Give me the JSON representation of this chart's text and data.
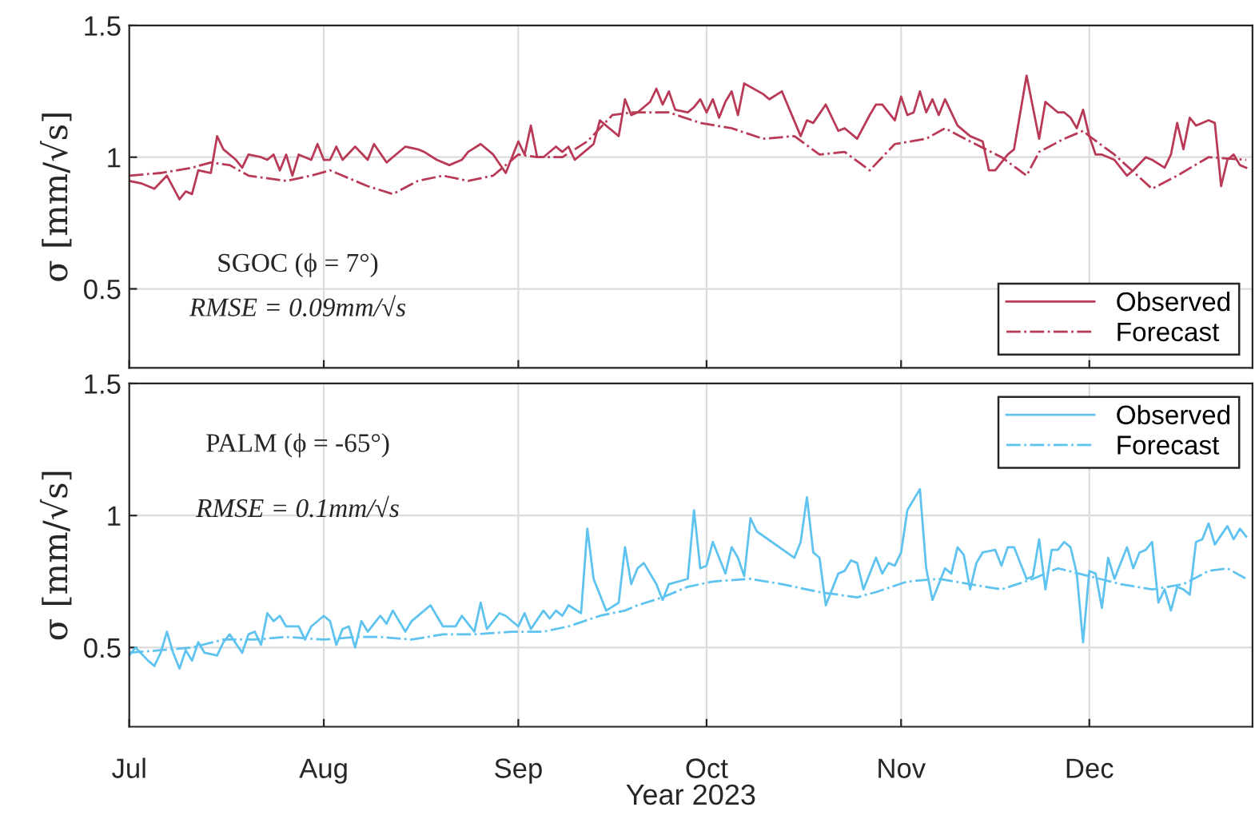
{
  "chart_data": [
    {
      "type": "line",
      "ylabel": "σ [mm/√s]",
      "xlim": [
        "2023-07-01",
        "2023-12-27"
      ],
      "ylim": [
        0.2,
        1.5
      ],
      "yticks": [
        0.5,
        1,
        1.5
      ],
      "xticks": [
        {
          "value": "2023-07-01",
          "label": null
        },
        {
          "value": "2023-08-01",
          "label": null
        },
        {
          "value": "2023-09-01",
          "label": null
        },
        {
          "value": "2023-10-01",
          "label": null
        },
        {
          "value": "2023-11-01",
          "label": null
        },
        {
          "value": "2023-12-01",
          "label": null
        }
      ],
      "tick_labels": "y",
      "grid": true,
      "legend": "bottom right",
      "annotations": [
        "SGOC (ϕ = 7°)",
        "RMSE = 0.09mm/√s"
      ],
      "series": [
        {
          "name": "Observed",
          "color": "#b83a56",
          "line_style": "solid",
          "x": [
            "2023-07-01",
            "2023-07-03",
            "2023-07-05",
            "2023-07-07",
            "2023-07-09",
            "2023-07-10",
            "2023-07-11",
            "2023-07-12",
            "2023-07-14",
            "2023-07-15",
            "2023-07-16",
            "2023-07-18",
            "2023-07-19",
            "2023-07-20",
            "2023-07-22",
            "2023-07-23",
            "2023-07-24",
            "2023-07-25",
            "2023-07-26",
            "2023-07-27",
            "2023-07-28",
            "2023-07-30",
            "2023-07-31",
            "2023-08-01",
            "2023-08-02",
            "2023-08-03",
            "2023-08-04",
            "2023-08-06",
            "2023-08-08",
            "2023-08-09",
            "2023-08-11",
            "2023-08-12",
            "2023-08-14",
            "2023-08-16",
            "2023-08-17",
            "2023-08-19",
            "2023-08-21",
            "2023-08-23",
            "2023-08-24",
            "2023-08-26",
            "2023-08-28",
            "2023-08-30",
            "2023-09-01",
            "2023-09-02",
            "2023-09-03",
            "2023-09-04",
            "2023-09-05",
            "2023-09-07",
            "2023-09-08",
            "2023-09-09",
            "2023-09-10",
            "2023-09-12",
            "2023-09-13",
            "2023-09-14",
            "2023-09-17",
            "2023-09-18",
            "2023-09-19",
            "2023-09-20",
            "2023-09-22",
            "2023-09-23",
            "2023-09-24",
            "2023-09-25",
            "2023-09-26",
            "2023-09-28",
            "2023-09-29",
            "2023-09-30",
            "2023-10-01",
            "2023-10-02",
            "2023-10-03",
            "2023-10-04",
            "2023-10-05",
            "2023-10-06",
            "2023-10-07",
            "2023-10-10",
            "2023-10-11",
            "2023-10-13",
            "2023-10-16",
            "2023-10-17",
            "2023-10-18",
            "2023-10-20",
            "2023-10-22",
            "2023-10-23",
            "2023-10-25",
            "2023-10-27",
            "2023-10-28",
            "2023-10-29",
            "2023-10-31",
            "2023-11-01",
            "2023-11-02",
            "2023-11-03",
            "2023-11-04",
            "2023-11-05",
            "2023-11-06",
            "2023-11-07",
            "2023-11-08",
            "2023-11-10",
            "2023-11-12",
            "2023-11-14",
            "2023-11-15",
            "2023-11-16",
            "2023-11-18",
            "2023-11-19",
            "2023-11-21",
            "2023-11-23",
            "2023-11-24",
            "2023-11-26",
            "2023-11-27",
            "2023-11-28",
            "2023-11-29",
            "2023-11-30",
            "2023-12-01",
            "2023-12-02",
            "2023-12-03",
            "2023-12-05",
            "2023-12-07",
            "2023-12-08",
            "2023-12-10",
            "2023-12-11",
            "2023-12-13",
            "2023-12-14",
            "2023-12-15",
            "2023-12-16",
            "2023-12-17",
            "2023-12-18",
            "2023-12-20",
            "2023-12-21",
            "2023-12-22",
            "2023-12-23",
            "2023-12-24",
            "2023-12-25",
            "2023-12-26"
          ],
          "values": [
            0.91,
            0.9,
            0.88,
            0.93,
            0.84,
            0.87,
            0.86,
            0.95,
            0.94,
            1.08,
            1.03,
            0.99,
            0.96,
            1.01,
            1.0,
            0.99,
            1.01,
            0.95,
            1.01,
            0.93,
            1.01,
            0.99,
            1.05,
            0.99,
            0.99,
            1.04,
            0.99,
            1.04,
            0.99,
            1.05,
            0.98,
            1.0,
            1.04,
            1.03,
            1.02,
            0.99,
            0.97,
            0.99,
            1.02,
            1.05,
            1.01,
            0.94,
            1.06,
            1.01,
            1.12,
            1.0,
            1.0,
            1.04,
            1.02,
            1.04,
            0.99,
            1.03,
            1.05,
            1.14,
            1.08,
            1.22,
            1.16,
            1.17,
            1.21,
            1.26,
            1.2,
            1.25,
            1.18,
            1.17,
            1.19,
            1.22,
            1.17,
            1.22,
            1.15,
            1.21,
            1.25,
            1.16,
            1.28,
            1.24,
            1.22,
            1.25,
            1.08,
            1.14,
            1.13,
            1.2,
            1.1,
            1.11,
            1.07,
            1.16,
            1.2,
            1.2,
            1.14,
            1.23,
            1.16,
            1.17,
            1.25,
            1.17,
            1.22,
            1.16,
            1.22,
            1.12,
            1.08,
            1.06,
            0.95,
            0.95,
            1.01,
            1.03,
            1.31,
            1.07,
            1.21,
            1.17,
            1.17,
            1.15,
            1.11,
            1.18,
            1.08,
            1.01,
            1.01,
            0.99,
            0.93,
            0.95,
            1.0,
            0.99,
            0.96,
            1.01,
            1.13,
            1.03,
            1.15,
            1.12,
            1.14,
            1.13,
            0.89,
            0.99,
            1.01,
            0.97,
            0.96
          ]
        },
        {
          "name": "Forecast",
          "color": "#b83a56",
          "line_style": "dashdot",
          "x": [
            "2023-07-01",
            "2023-07-06",
            "2023-07-11",
            "2023-07-14",
            "2023-07-17",
            "2023-07-20",
            "2023-07-26",
            "2023-07-30",
            "2023-08-02",
            "2023-08-04",
            "2023-08-08",
            "2023-08-12",
            "2023-08-16",
            "2023-08-20",
            "2023-08-24",
            "2023-08-28",
            "2023-09-01",
            "2023-09-04",
            "2023-09-08",
            "2023-09-12",
            "2023-09-16",
            "2023-09-19",
            "2023-09-25",
            "2023-09-30",
            "2023-10-05",
            "2023-10-10",
            "2023-10-15",
            "2023-10-19",
            "2023-10-23",
            "2023-10-27",
            "2023-10-31",
            "2023-11-05",
            "2023-11-08",
            "2023-11-12",
            "2023-11-17",
            "2023-11-21",
            "2023-11-23",
            "2023-11-27",
            "2023-11-30",
            "2023-12-01",
            "2023-12-05",
            "2023-12-11",
            "2023-12-15",
            "2023-12-20",
            "2023-12-26"
          ],
          "values": [
            0.93,
            0.94,
            0.96,
            0.98,
            0.97,
            0.93,
            0.91,
            0.93,
            0.95,
            0.93,
            0.89,
            0.86,
            0.91,
            0.93,
            0.91,
            0.93,
            1.01,
            1.0,
            1.0,
            1.06,
            1.16,
            1.17,
            1.17,
            1.13,
            1.11,
            1.07,
            1.08,
            1.01,
            1.02,
            0.95,
            1.05,
            1.07,
            1.11,
            1.06,
            1.0,
            0.93,
            1.02,
            1.07,
            1.1,
            1.08,
            1.01,
            0.88,
            0.93,
            1.0,
            0.99
          ]
        }
      ]
    },
    {
      "type": "line",
      "ylabel": "σ [mm/√s]",
      "xlabel": "Year 2023",
      "xlim": [
        "2023-07-01",
        "2023-12-27"
      ],
      "ylim": [
        0.2,
        1.5
      ],
      "yticks": [
        0.5,
        1,
        1.5
      ],
      "xticks": [
        {
          "value": "2023-07-01",
          "label": "Jul"
        },
        {
          "value": "2023-08-01",
          "label": "Aug"
        },
        {
          "value": "2023-09-01",
          "label": "Sep"
        },
        {
          "value": "2023-10-01",
          "label": "Oct"
        },
        {
          "value": "2023-11-01",
          "label": "Nov"
        },
        {
          "value": "2023-12-01",
          "label": "Dec"
        }
      ],
      "grid": true,
      "legend": "top right",
      "annotations": [
        "PALM (ϕ = -65°)",
        "RMSE = 0.1mm/√s"
      ],
      "series": [
        {
          "name": "Observed",
          "color": "#5ec3ee",
          "line_style": "solid",
          "x": [
            "2023-07-01",
            "2023-07-02",
            "2023-07-04",
            "2023-07-05",
            "2023-07-06",
            "2023-07-07",
            "2023-07-08",
            "2023-07-09",
            "2023-07-10",
            "2023-07-11",
            "2023-07-12",
            "2023-07-13",
            "2023-07-15",
            "2023-07-16",
            "2023-07-17",
            "2023-07-19",
            "2023-07-20",
            "2023-07-21",
            "2023-07-22",
            "2023-07-23",
            "2023-07-24",
            "2023-07-25",
            "2023-07-26",
            "2023-07-28",
            "2023-07-29",
            "2023-07-30",
            "2023-08-01",
            "2023-08-02",
            "2023-08-03",
            "2023-08-04",
            "2023-08-05",
            "2023-08-06",
            "2023-08-07",
            "2023-08-08",
            "2023-08-10",
            "2023-08-11",
            "2023-08-12",
            "2023-08-14",
            "2023-08-15",
            "2023-08-18",
            "2023-08-19",
            "2023-08-20",
            "2023-08-22",
            "2023-08-23",
            "2023-08-25",
            "2023-08-26",
            "2023-08-27",
            "2023-08-29",
            "2023-08-30",
            "2023-09-01",
            "2023-09-02",
            "2023-09-03",
            "2023-09-05",
            "2023-09-06",
            "2023-09-07",
            "2023-09-08",
            "2023-09-09",
            "2023-09-11",
            "2023-09-12",
            "2023-09-13",
            "2023-09-15",
            "2023-09-17",
            "2023-09-18",
            "2023-09-19",
            "2023-09-20",
            "2023-09-21",
            "2023-09-23",
            "2023-09-24",
            "2023-09-25",
            "2023-09-28",
            "2023-09-29",
            "2023-09-30",
            "2023-10-01",
            "2023-10-02",
            "2023-10-04",
            "2023-10-05",
            "2023-10-06",
            "2023-10-07",
            "2023-10-08",
            "2023-10-09",
            "2023-10-15",
            "2023-10-16",
            "2023-10-17",
            "2023-10-18",
            "2023-10-19",
            "2023-10-20",
            "2023-10-22",
            "2023-10-23",
            "2023-10-24",
            "2023-10-25",
            "2023-10-26",
            "2023-10-28",
            "2023-10-29",
            "2023-10-30",
            "2023-10-31",
            "2023-11-01",
            "2023-11-02",
            "2023-11-04",
            "2023-11-05",
            "2023-11-06",
            "2023-11-08",
            "2023-11-09",
            "2023-11-10",
            "2023-11-11",
            "2023-11-12",
            "2023-11-13",
            "2023-11-14",
            "2023-11-16",
            "2023-11-17",
            "2023-11-18",
            "2023-11-19",
            "2023-11-21",
            "2023-11-22",
            "2023-11-23",
            "2023-11-24",
            "2023-11-25",
            "2023-11-26",
            "2023-11-27",
            "2023-11-28",
            "2023-11-29",
            "2023-11-30",
            "2023-12-01",
            "2023-12-02",
            "2023-12-03",
            "2023-12-04",
            "2023-12-05",
            "2023-12-07",
            "2023-12-08",
            "2023-12-09",
            "2023-12-10",
            "2023-12-11",
            "2023-12-12",
            "2023-12-13",
            "2023-12-14",
            "2023-12-15",
            "2023-12-16",
            "2023-12-17",
            "2023-12-18",
            "2023-12-19",
            "2023-12-20",
            "2023-12-21",
            "2023-12-23",
            "2023-12-24",
            "2023-12-25",
            "2023-12-26"
          ],
          "values": [
            0.47,
            0.5,
            0.45,
            0.43,
            0.48,
            0.56,
            0.48,
            0.42,
            0.49,
            0.45,
            0.52,
            0.48,
            0.47,
            0.52,
            0.55,
            0.48,
            0.55,
            0.56,
            0.51,
            0.63,
            0.6,
            0.62,
            0.58,
            0.58,
            0.53,
            0.58,
            0.62,
            0.6,
            0.51,
            0.57,
            0.58,
            0.5,
            0.6,
            0.56,
            0.62,
            0.59,
            0.64,
            0.56,
            0.6,
            0.66,
            0.62,
            0.58,
            0.58,
            0.62,
            0.56,
            0.67,
            0.57,
            0.63,
            0.62,
            0.58,
            0.63,
            0.57,
            0.64,
            0.61,
            0.64,
            0.62,
            0.66,
            0.63,
            0.95,
            0.76,
            0.64,
            0.67,
            0.88,
            0.74,
            0.8,
            0.82,
            0.74,
            0.68,
            0.74,
            0.76,
            1.02,
            0.8,
            0.81,
            0.9,
            0.78,
            0.88,
            0.84,
            0.77,
            0.99,
            0.94,
            0.84,
            0.9,
            1.07,
            0.86,
            0.84,
            0.66,
            0.78,
            0.79,
            0.83,
            0.82,
            0.72,
            0.84,
            0.78,
            0.82,
            0.81,
            0.86,
            1.02,
            1.1,
            0.8,
            0.68,
            0.8,
            0.78,
            0.88,
            0.85,
            0.72,
            0.82,
            0.86,
            0.87,
            0.81,
            0.88,
            0.88,
            0.76,
            0.77,
            0.91,
            0.72,
            0.87,
            0.87,
            0.9,
            0.88,
            0.78,
            0.52,
            0.79,
            0.78,
            0.65,
            0.84,
            0.76,
            0.88,
            0.8,
            0.86,
            0.87,
            0.9,
            0.67,
            0.72,
            0.64,
            0.73,
            0.72,
            0.7,
            0.9,
            0.91,
            0.97,
            0.89,
            0.96,
            0.91,
            0.95,
            0.92
          ]
        },
        {
          "name": "Forecast",
          "color": "#5ec3ee",
          "line_style": "dashdot",
          "x": [
            "2023-07-01",
            "2023-07-06",
            "2023-07-11",
            "2023-07-16",
            "2023-07-21",
            "2023-07-26",
            "2023-08-01",
            "2023-08-06",
            "2023-08-10",
            "2023-08-15",
            "2023-08-20",
            "2023-08-25",
            "2023-08-31",
            "2023-09-05",
            "2023-09-09",
            "2023-09-14",
            "2023-09-18",
            "2023-09-20",
            "2023-09-24",
            "2023-09-28",
            "2023-10-02",
            "2023-10-08",
            "2023-10-13",
            "2023-10-19",
            "2023-10-25",
            "2023-10-28",
            "2023-11-02",
            "2023-11-07",
            "2023-11-12",
            "2023-11-17",
            "2023-11-22",
            "2023-11-26",
            "2023-12-01",
            "2023-12-06",
            "2023-12-11",
            "2023-12-16",
            "2023-12-20",
            "2023-12-23",
            "2023-12-26"
          ],
          "values": [
            0.48,
            0.49,
            0.5,
            0.53,
            0.53,
            0.54,
            0.53,
            0.54,
            0.54,
            0.53,
            0.55,
            0.55,
            0.56,
            0.56,
            0.58,
            0.62,
            0.64,
            0.66,
            0.69,
            0.73,
            0.75,
            0.76,
            0.74,
            0.71,
            0.69,
            0.71,
            0.75,
            0.76,
            0.74,
            0.72,
            0.76,
            0.8,
            0.77,
            0.74,
            0.72,
            0.74,
            0.79,
            0.8,
            0.76
          ]
        }
      ]
    }
  ]
}
